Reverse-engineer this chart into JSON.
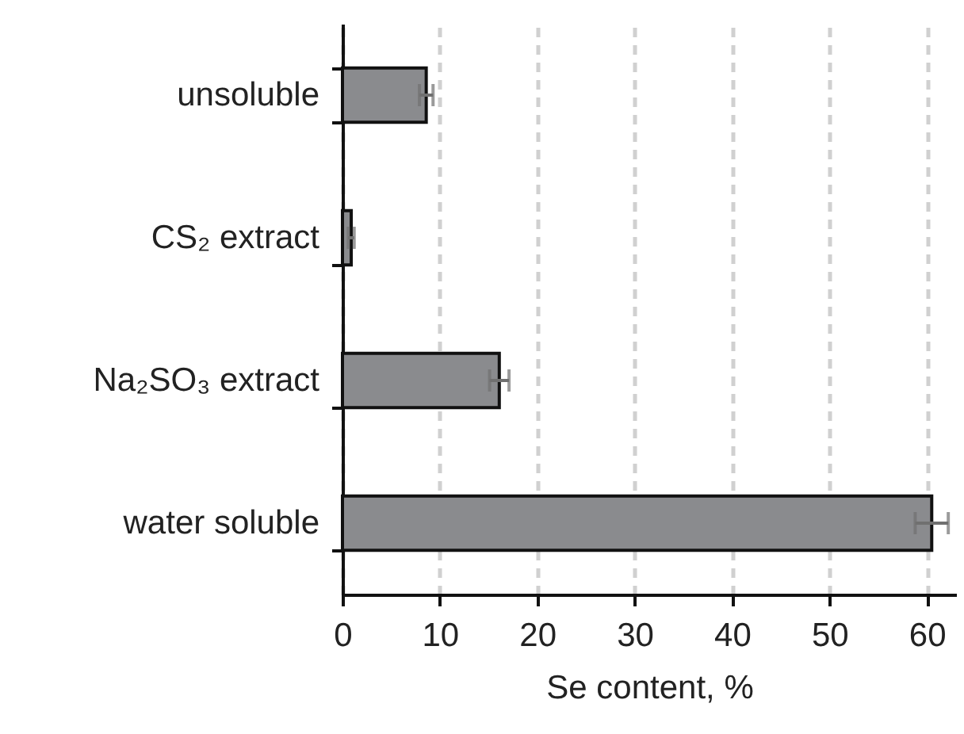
{
  "chart_data": {
    "type": "bar",
    "orientation": "horizontal",
    "categories": [
      "unsoluble",
      "CS₂ extract",
      "Na₂SO₃ extract",
      "water soluble"
    ],
    "values": [
      8.6,
      0.9,
      16.1,
      60.5
    ],
    "errors": [
      0.7,
      0.3,
      1.0,
      1.7
    ],
    "color": "#8a8b8e",
    "xlabel": "Se content, %",
    "xlim": [
      0,
      63
    ],
    "xticks": [
      0,
      10,
      20,
      30,
      40,
      50,
      60
    ],
    "grid": "x"
  }
}
